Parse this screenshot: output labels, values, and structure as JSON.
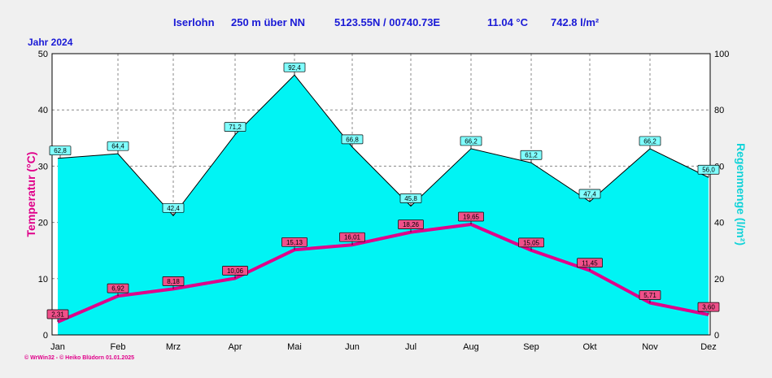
{
  "header": {
    "station": "Iserlohn",
    "elevation": "250 m über NN",
    "coords": "5123.55N / 00740.73E",
    "temp_avg": "11.04 °C",
    "rain_total": "742.8 l/m²",
    "year": "Jahr 2024"
  },
  "footer": "© WrWin32 - © Heiko Blüdorn 01.01.2025",
  "chart_data": {
    "type": "line",
    "categories": [
      "Jan",
      "Feb",
      "Mrz",
      "Apr",
      "Mai",
      "Jun",
      "Jul",
      "Aug",
      "Sep",
      "Okt",
      "Nov",
      "Dez"
    ],
    "series": [
      {
        "name": "Temperatur (°C)",
        "axis": "left",
        "type": "line",
        "values": [
          2.31,
          6.92,
          8.18,
          10.06,
          15.13,
          16.01,
          18.26,
          19.65,
          15.05,
          11.45,
          5.71,
          3.6
        ],
        "labels": [
          "2,31",
          "6,92",
          "8,18",
          "10,06",
          "15,13",
          "16,01",
          "18,26",
          "19,65",
          "15,05",
          "11,45",
          "5,71",
          "3,60"
        ]
      },
      {
        "name": "Regenmenge (l/m²)",
        "axis": "right",
        "type": "area",
        "values": [
          62.8,
          64.4,
          42.4,
          71.2,
          92.4,
          66.8,
          45.8,
          66.2,
          61.2,
          47.4,
          66.2,
          56.0
        ],
        "labels": [
          "62,8",
          "64,4",
          "42,4",
          "71,2",
          "92,4",
          "66,8",
          "45,8",
          "66,2",
          "61,2",
          "47,4",
          "66,2",
          "56,0"
        ]
      }
    ],
    "ylabel_left": "Temperatur (°C)",
    "ylabel_right": "Regenmenge (l/m²)",
    "ylim_left": [
      0,
      50
    ],
    "yticks_left": [
      0,
      10,
      20,
      30,
      40,
      50
    ],
    "ylim_right": [
      0,
      100
    ],
    "yticks_right": [
      0,
      20,
      40,
      60,
      80,
      100
    ],
    "grid": true,
    "colors": {
      "temp": "#e0008a",
      "rain": "#00f4f4",
      "rain_label": "#80ffff",
      "temp_label": "#f0508a",
      "axis_text": "#1a1ad6"
    }
  }
}
